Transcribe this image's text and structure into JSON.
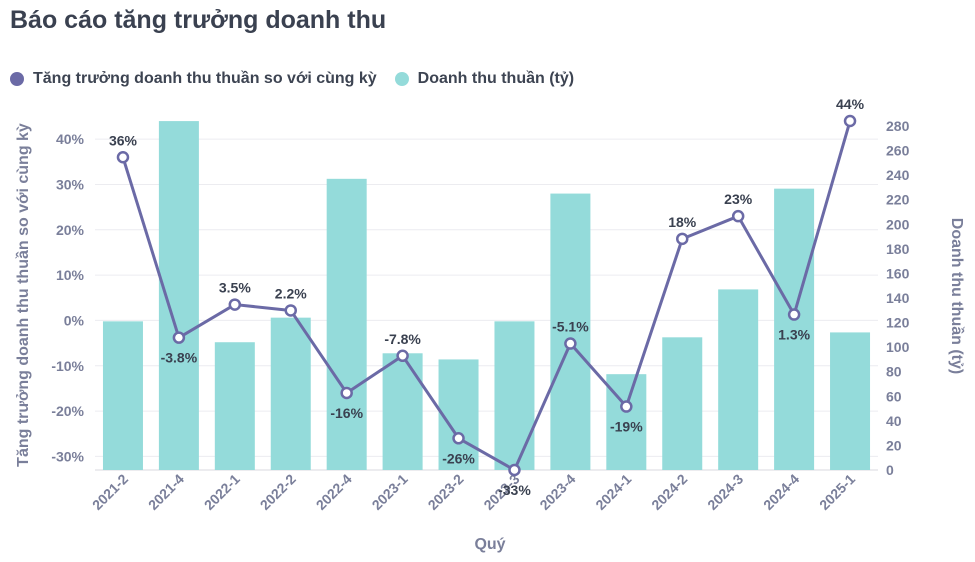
{
  "title": "Báo cáo tăng trưởng doanh thu",
  "legend": [
    {
      "label": "Tăng trưởng doanh thu thuần so với cùng kỳ",
      "color": "#6b6aa6"
    },
    {
      "label": "Doanh thu thuần (tỷ)",
      "color": "#94dbda"
    }
  ],
  "chart_data": {
    "type": "bar+line",
    "xlabel": "Quý",
    "ylabel_left": "Tăng trưởng doanh thu thuần so với cùng kỳ",
    "ylabel_right": "Doanh thu thuần (tỷ)",
    "categories": [
      "2021-2",
      "2021-4",
      "2022-1",
      "2022-2",
      "2022-4",
      "2023-1",
      "2023-2",
      "2023-3",
      "2023-4",
      "2024-1",
      "2024-2",
      "2024-3",
      "2024-4",
      "2025-1"
    ],
    "bar_series": {
      "name": "Doanh thu thuần (tỷ)",
      "axis": "right",
      "values": [
        121,
        284,
        104,
        124,
        237,
        95,
        90,
        121,
        225,
        78,
        108,
        147,
        229,
        112
      ],
      "color": "#94dbda"
    },
    "line_series": {
      "name": "Tăng trưởng doanh thu thuần so với cùng kỳ",
      "axis": "left",
      "values": [
        36,
        -3.8,
        3.5,
        2.2,
        -16,
        -7.8,
        -26,
        -33,
        -5.1,
        -19,
        18,
        23,
        1.3,
        44
      ],
      "labels": [
        "36%",
        "-3.8%",
        "3.5%",
        "2.2%",
        "-16%",
        "-7.8%",
        "-26%",
        "-33%",
        "-5.1%",
        "-19%",
        "18%",
        "23%",
        "1.3%",
        "44%"
      ],
      "label_pos": [
        "above",
        "below",
        "above",
        "above",
        "below",
        "above",
        "below",
        "below",
        "above",
        "below",
        "above",
        "above",
        "below",
        "above"
      ],
      "color": "#6b6aa6"
    },
    "left_axis": {
      "ticks": [
        -30,
        -20,
        -10,
        0,
        10,
        20,
        30,
        40
      ],
      "tick_labels": [
        "-30%",
        "-20%",
        "-10%",
        "0%",
        "10%",
        "20%",
        "30%",
        "40%"
      ],
      "ylim": [
        -33,
        44
      ]
    },
    "right_axis": {
      "ticks": [
        0,
        20,
        40,
        60,
        80,
        100,
        120,
        140,
        160,
        180,
        200,
        220,
        240,
        260,
        280
      ],
      "ylim": [
        0,
        280
      ]
    },
    "grid": true
  }
}
